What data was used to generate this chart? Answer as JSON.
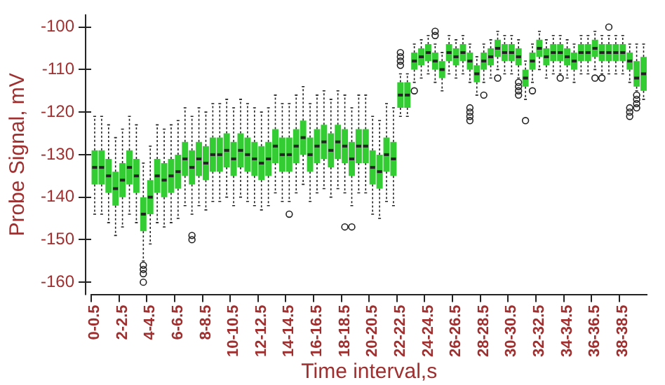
{
  "chart_data": {
    "type": "box",
    "xlabel": "Time interval,s",
    "ylabel": "Probe Signal, mV",
    "color": "#33cc33",
    "ylim": [
      -163,
      -97
    ],
    "yticks": [
      -160,
      -150,
      -140,
      -130,
      -120,
      -110,
      -100
    ],
    "grid": false,
    "categories": [
      "0-0.5",
      null,
      null,
      null,
      "2-2.5",
      null,
      null,
      null,
      "4-4.5",
      null,
      null,
      null,
      "6-6.5",
      null,
      null,
      null,
      "8-8.5",
      null,
      null,
      null,
      "10-10.5",
      null,
      null,
      null,
      "12-12.5",
      null,
      null,
      null,
      "14-14.5",
      null,
      null,
      null,
      "16-16.5",
      null,
      null,
      null,
      "18-18.5",
      null,
      null,
      null,
      "20-20.5",
      null,
      null,
      null,
      "22-22.5",
      null,
      null,
      null,
      "24-24.5",
      null,
      null,
      null,
      "26-26.5",
      null,
      null,
      null,
      "28-28.5",
      null,
      null,
      null,
      "30-30.5",
      null,
      null,
      null,
      "32-32.5",
      null,
      null,
      null,
      "34-34.5",
      null,
      null,
      null,
      "36-36.5",
      null,
      null,
      null,
      "38-38.5",
      null,
      null,
      null
    ],
    "boxes": [
      {
        "low": -144,
        "q1": -137,
        "median": -133,
        "q3": -129,
        "high": -121
      },
      {
        "low": -144,
        "q1": -137,
        "median": -133,
        "q3": -129,
        "high": -121
      },
      {
        "low": -146,
        "q1": -139,
        "median": -135,
        "q3": -131,
        "high": -123
      },
      {
        "low": -149,
        "q1": -142,
        "median": -138,
        "q3": -134,
        "high": -126
      },
      {
        "low": -147,
        "q1": -140,
        "median": -136,
        "q3": -132,
        "high": -124
      },
      {
        "low": -144,
        "q1": -137,
        "median": -133,
        "q3": -129,
        "high": -121
      },
      {
        "low": -146,
        "q1": -139,
        "median": -135,
        "q3": -131,
        "high": -123
      },
      {
        "low": -155,
        "q1": -148,
        "median": -144,
        "q3": -140,
        "high": -132,
        "outliers": [
          -156,
          -157,
          -158,
          -160
        ]
      },
      {
        "low": -151,
        "q1": -144,
        "median": -140,
        "q3": -136,
        "high": -128
      },
      {
        "low": -146,
        "q1": -139,
        "median": -135,
        "q3": -131,
        "high": -123
      },
      {
        "low": -147,
        "q1": -140,
        "median": -136,
        "q3": -132,
        "high": -124
      },
      {
        "low": -146,
        "q1": -139,
        "median": -135,
        "q3": -131,
        "high": -123
      },
      {
        "low": -145,
        "q1": -138,
        "median": -134,
        "q3": -130,
        "high": -122
      },
      {
        "low": -142,
        "q1": -135,
        "median": -131,
        "q3": -127,
        "high": -119
      },
      {
        "low": -144,
        "q1": -137,
        "median": -133,
        "q3": -129,
        "high": -121,
        "outliers": [
          -149,
          -150
        ]
      },
      {
        "low": -142,
        "q1": -135,
        "median": -131,
        "q3": -127,
        "high": -119
      },
      {
        "low": -143,
        "q1": -136,
        "median": -132,
        "q3": -128,
        "high": -120
      },
      {
        "low": -141,
        "q1": -134,
        "median": -130,
        "q3": -126,
        "high": -118
      },
      {
        "low": -141,
        "q1": -134,
        "median": -130,
        "q3": -126,
        "high": -118
      },
      {
        "low": -140,
        "q1": -133,
        "median": -129,
        "q3": -125,
        "high": -117
      },
      {
        "low": -142,
        "q1": -135,
        "median": -131,
        "q3": -127,
        "high": -119
      },
      {
        "low": -140,
        "q1": -133,
        "median": -129,
        "q3": -125,
        "high": -117
      },
      {
        "low": -141,
        "q1": -134,
        "median": -130,
        "q3": -126,
        "high": -118
      },
      {
        "low": -142,
        "q1": -135,
        "median": -131,
        "q3": -127,
        "high": -119
      },
      {
        "low": -143,
        "q1": -136,
        "median": -132,
        "q3": -128,
        "high": -120
      },
      {
        "low": -142,
        "q1": -135,
        "median": -131,
        "q3": -127,
        "high": -119
      },
      {
        "low": -139,
        "q1": -132,
        "median": -128,
        "q3": -124,
        "high": -116
      },
      {
        "low": -141,
        "q1": -134,
        "median": -130,
        "q3": -126,
        "high": -118
      },
      {
        "low": -141,
        "q1": -134,
        "median": -130,
        "q3": -126,
        "high": -118,
        "outliers": [
          -144
        ]
      },
      {
        "low": -139,
        "q1": -132,
        "median": -128,
        "q3": -124,
        "high": -116
      },
      {
        "low": -137,
        "q1": -130,
        "median": -126,
        "q3": -122,
        "high": -114
      },
      {
        "low": -141,
        "q1": -134,
        "median": -130,
        "q3": -126,
        "high": -118
      },
      {
        "low": -139,
        "q1": -132,
        "median": -128,
        "q3": -124,
        "high": -116
      },
      {
        "low": -138,
        "q1": -131,
        "median": -127,
        "q3": -123,
        "high": -115
      },
      {
        "low": -140,
        "q1": -133,
        "median": -129,
        "q3": -125,
        "high": -117
      },
      {
        "low": -138,
        "q1": -131,
        "median": -127,
        "q3": -123,
        "high": -115
      },
      {
        "low": -139,
        "q1": -132,
        "median": -128,
        "q3": -124,
        "high": -116,
        "outliers": [
          -147
        ]
      },
      {
        "low": -142,
        "q1": -135,
        "median": -131,
        "q3": -127,
        "high": -119,
        "outliers": [
          -147
        ]
      },
      {
        "low": -139,
        "q1": -132,
        "median": -128,
        "q3": -124,
        "high": -116
      },
      {
        "low": -139,
        "q1": -132,
        "median": -128,
        "q3": -124,
        "high": -116
      },
      {
        "low": -144,
        "q1": -137,
        "median": -133,
        "q3": -129,
        "high": -121
      },
      {
        "low": -145,
        "q1": -138,
        "median": -134,
        "q3": -130,
        "high": -122
      },
      {
        "low": -141,
        "q1": -134,
        "median": -130,
        "q3": -126,
        "high": -118
      },
      {
        "low": -142,
        "q1": -135,
        "median": -131,
        "q3": -127,
        "high": -119
      },
      {
        "low": -121,
        "q1": -119,
        "median": -116,
        "q3": -113,
        "high": -111,
        "outliers": [
          -106,
          -107,
          -108,
          -109
        ]
      },
      {
        "low": -121,
        "q1": -119,
        "median": -116,
        "q3": -113,
        "high": -111
      },
      {
        "low": -113,
        "q1": -110,
        "median": -108,
        "q3": -106,
        "high": -104,
        "outliers": [
          -115
        ]
      },
      {
        "low": -112,
        "q1": -109,
        "median": -107,
        "q3": -105,
        "high": -103
      },
      {
        "low": -111,
        "q1": -108,
        "median": -106,
        "q3": -104,
        "high": -102
      },
      {
        "low": -113,
        "q1": -110,
        "median": -108,
        "q3": -106,
        "high": -104,
        "outliers": [
          -101,
          -102
        ]
      },
      {
        "low": -115,
        "q1": -112,
        "median": -110,
        "q3": -108,
        "high": -106
      },
      {
        "low": -111,
        "q1": -108,
        "median": -106,
        "q3": -104,
        "high": -102
      },
      {
        "low": -112,
        "q1": -109,
        "median": -107,
        "q3": -105,
        "high": -103
      },
      {
        "low": -111,
        "q1": -108,
        "median": -106,
        "q3": -104,
        "high": -102
      },
      {
        "low": -113,
        "q1": -110,
        "median": -108,
        "q3": -106,
        "high": -104,
        "outliers": [
          -119,
          -120,
          -121,
          -122
        ]
      },
      {
        "low": -116,
        "q1": -113,
        "median": -111,
        "q3": -109,
        "high": -107
      },
      {
        "low": -113,
        "q1": -110,
        "median": -108,
        "q3": -106,
        "high": -104,
        "outliers": [
          -116
        ]
      },
      {
        "low": -112,
        "q1": -109,
        "median": -107,
        "q3": -105,
        "high": -103
      },
      {
        "low": -110,
        "q1": -107,
        "median": -105,
        "q3": -103,
        "high": -101,
        "outliers": [
          -112
        ]
      },
      {
        "low": -111,
        "q1": -108,
        "median": -106,
        "q3": -104,
        "high": -102
      },
      {
        "low": -111,
        "q1": -108,
        "median": -106,
        "q3": -104,
        "high": -102
      },
      {
        "low": -112,
        "q1": -109,
        "median": -107,
        "q3": -105,
        "high": -103,
        "outliers": [
          -113,
          -114,
          -115,
          -116
        ]
      },
      {
        "low": -117,
        "q1": -114,
        "median": -112,
        "q3": -110,
        "high": -108,
        "outliers": [
          -122
        ]
      },
      {
        "low": -113,
        "q1": -110,
        "median": -108,
        "q3": -106,
        "high": -104,
        "outliers": [
          -115
        ]
      },
      {
        "low": -110,
        "q1": -107,
        "median": -105,
        "q3": -103,
        "high": -101
      },
      {
        "low": -112,
        "q1": -109,
        "median": -107,
        "q3": -105,
        "high": -103
      },
      {
        "low": -111,
        "q1": -108,
        "median": -106,
        "q3": -104,
        "high": -102
      },
      {
        "low": -111,
        "q1": -108,
        "median": -106,
        "q3": -104,
        "high": -102,
        "outliers": [
          -112
        ]
      },
      {
        "low": -112,
        "q1": -109,
        "median": -107,
        "q3": -105,
        "high": -103
      },
      {
        "low": -113,
        "q1": -110,
        "median": -108,
        "q3": -106,
        "high": -104
      },
      {
        "low": -111,
        "q1": -108,
        "median": -106,
        "q3": -104,
        "high": -102
      },
      {
        "low": -111,
        "q1": -108,
        "median": -106,
        "q3": -104,
        "high": -102
      },
      {
        "low": -110,
        "q1": -107,
        "median": -105,
        "q3": -103,
        "high": -101,
        "outliers": [
          -112
        ]
      },
      {
        "low": -111,
        "q1": -108,
        "median": -106,
        "q3": -104,
        "high": -102,
        "outliers": [
          -112
        ]
      },
      {
        "low": -111,
        "q1": -108,
        "median": -106,
        "q3": -104,
        "high": -102,
        "outliers": [
          -100
        ]
      },
      {
        "low": -111,
        "q1": -108,
        "median": -106,
        "q3": -104,
        "high": -102
      },
      {
        "low": -111,
        "q1": -108,
        "median": -106,
        "q3": -104,
        "high": -102
      },
      {
        "low": -113,
        "q1": -110,
        "median": -108,
        "q3": -106,
        "high": -104,
        "outliers": [
          -119,
          -120,
          -121
        ]
      },
      {
        "low": -115,
        "q1": -114,
        "median": -112,
        "q3": -108,
        "high": -104,
        "outliers": [
          -116,
          -117,
          -118,
          -119
        ]
      },
      {
        "low": -117,
        "q1": -115,
        "median": -111,
        "q3": -107,
        "high": -104
      }
    ]
  }
}
